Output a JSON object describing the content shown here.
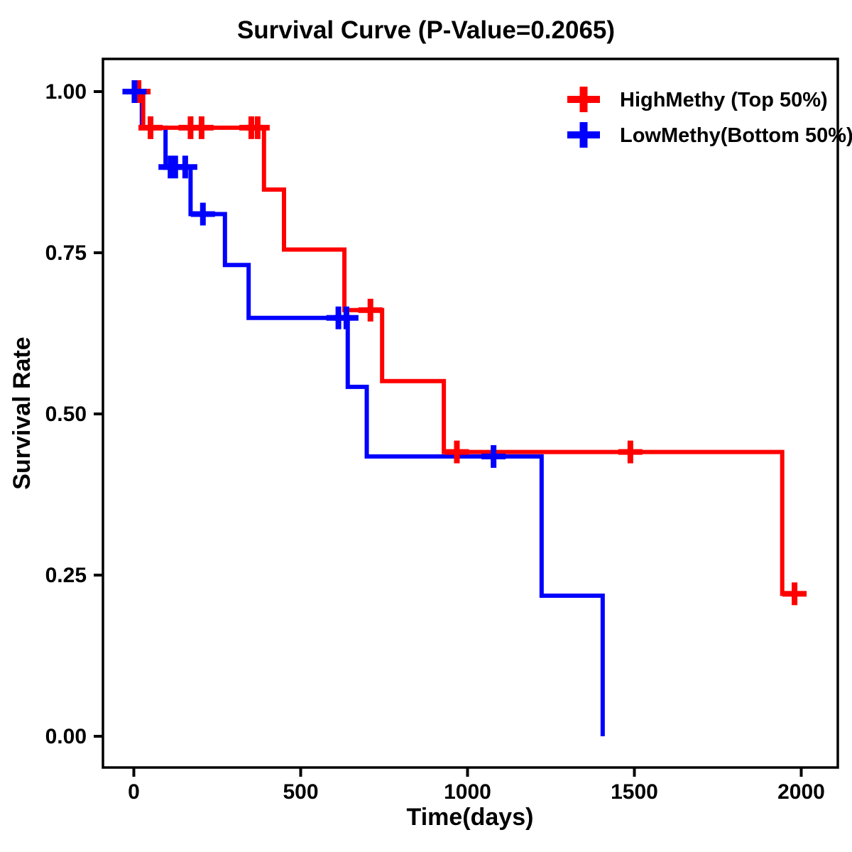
{
  "title": "Survival Curve (P-Value=0.2065)",
  "axes": {
    "x": {
      "label": "Time(days)",
      "tick_values": [
        0,
        500,
        1000,
        1500,
        2000
      ],
      "tick_labels": [
        "0",
        "500",
        "1000",
        "1500",
        "2000"
      ],
      "range": [
        0,
        2000
      ]
    },
    "y": {
      "label": "Survival Rate",
      "tick_values": [
        1.0,
        0.75,
        0.5,
        0.25,
        0.0
      ],
      "tick_labels": [
        "1.00",
        "0.75",
        "0.50",
        "0.25",
        "0.00"
      ],
      "range": [
        0,
        1
      ]
    }
  },
  "colors": {
    "high": "#ff0000",
    "low": "#0000ff",
    "text": "#000000",
    "background": "#ffffff"
  },
  "legend": {
    "position": "top-right-inside",
    "items": [
      {
        "key": "high",
        "label": "HighMethy (Top 50%)",
        "color": "#ff0000",
        "marker": "plus"
      },
      {
        "key": "low",
        "label": "LowMethy(Bottom 50%)",
        "color": "#0000ff",
        "marker": "plus"
      }
    ]
  },
  "chart_data": {
    "type": "line",
    "variant": "kaplan-meier-step",
    "title": "Survival Curve (P-Value=0.2065)",
    "p_value": "0.2065",
    "xlabel": "Time(days)",
    "ylabel": "Survival Rate",
    "xlim": [
      0,
      2000
    ],
    "ylim": [
      0.0,
      1.0
    ],
    "grid": false,
    "series": [
      {
        "name": "HighMethy (Top 50%)",
        "key": "high",
        "color": "#ff0000",
        "start": {
          "time": 0,
          "survival": 1.0
        },
        "steps": [
          [
            28,
            0.944
          ],
          [
            390,
            0.848
          ],
          [
            450,
            0.755
          ],
          [
            631,
            0.661
          ],
          [
            744,
            0.551
          ],
          [
            929,
            0.441
          ],
          [
            1943,
            0.221
          ]
        ],
        "end_time": 2003,
        "censors": [
          [
            14,
            1.0
          ],
          [
            50,
            0.944
          ],
          [
            170,
            0.944
          ],
          [
            203,
            0.944
          ],
          [
            352,
            0.944
          ],
          [
            371,
            0.944
          ],
          [
            709,
            0.661
          ],
          [
            968,
            0.441
          ],
          [
            1488,
            0.441
          ],
          [
            1980,
            0.221
          ]
        ]
      },
      {
        "name": "LowMethy(Bottom 50%)",
        "key": "low",
        "color": "#0000ff",
        "start": {
          "time": 0,
          "survival": 1.0
        },
        "steps": [
          [
            24,
            0.944
          ],
          [
            95,
            0.883
          ],
          [
            170,
            0.81
          ],
          [
            273,
            0.731
          ],
          [
            344,
            0.649
          ],
          [
            641,
            0.542
          ],
          [
            698,
            0.434
          ],
          [
            1222,
            0.218
          ],
          [
            1405,
            0.0
          ]
        ],
        "end_time": 1405,
        "censors": [
          [
            2,
            1.0
          ],
          [
            110,
            0.883
          ],
          [
            124,
            0.883
          ],
          [
            154,
            0.883
          ],
          [
            207,
            0.81
          ],
          [
            613,
            0.649
          ],
          [
            637,
            0.649
          ],
          [
            1078,
            0.434
          ]
        ]
      }
    ]
  }
}
